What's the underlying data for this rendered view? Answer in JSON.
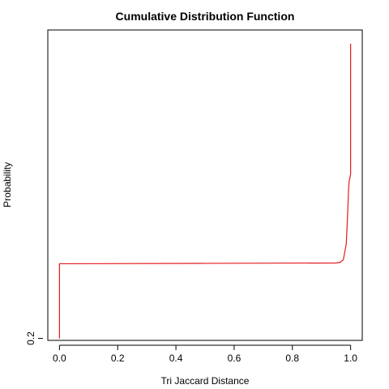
{
  "chart_data": {
    "type": "line",
    "title": "Cumulative Distribution Function",
    "xlabel": "Tri Jaccard Distance",
    "ylabel": "Probability",
    "xlim": [
      -0.04,
      1.04
    ],
    "ylim": [
      0.195,
      0.985
    ],
    "x_ticks": [
      {
        "value": 0.0,
        "label": "0.0"
      },
      {
        "value": 0.2,
        "label": "0.2"
      },
      {
        "value": 0.4,
        "label": "0.4"
      },
      {
        "value": 0.6,
        "label": "0.6"
      },
      {
        "value": 0.8,
        "label": "0.8"
      },
      {
        "value": 1.0,
        "label": "1.0"
      }
    ],
    "y_ticks": [
      {
        "value": 0.2,
        "label": "0.2"
      }
    ],
    "grid": false,
    "color": "#e41a1c",
    "series": [
      {
        "points": [
          [
            0.0,
            0.2
          ],
          [
            0.0,
            0.39
          ],
          [
            0.48,
            0.391
          ],
          [
            0.95,
            0.392
          ],
          [
            0.965,
            0.394
          ],
          [
            0.975,
            0.4
          ],
          [
            0.985,
            0.44
          ],
          [
            0.99,
            0.52
          ],
          [
            0.993,
            0.58
          ],
          [
            0.995,
            0.6
          ],
          [
            0.998,
            0.61
          ],
          [
            1.0,
            0.62
          ],
          [
            1.0,
            0.95
          ]
        ]
      }
    ]
  }
}
